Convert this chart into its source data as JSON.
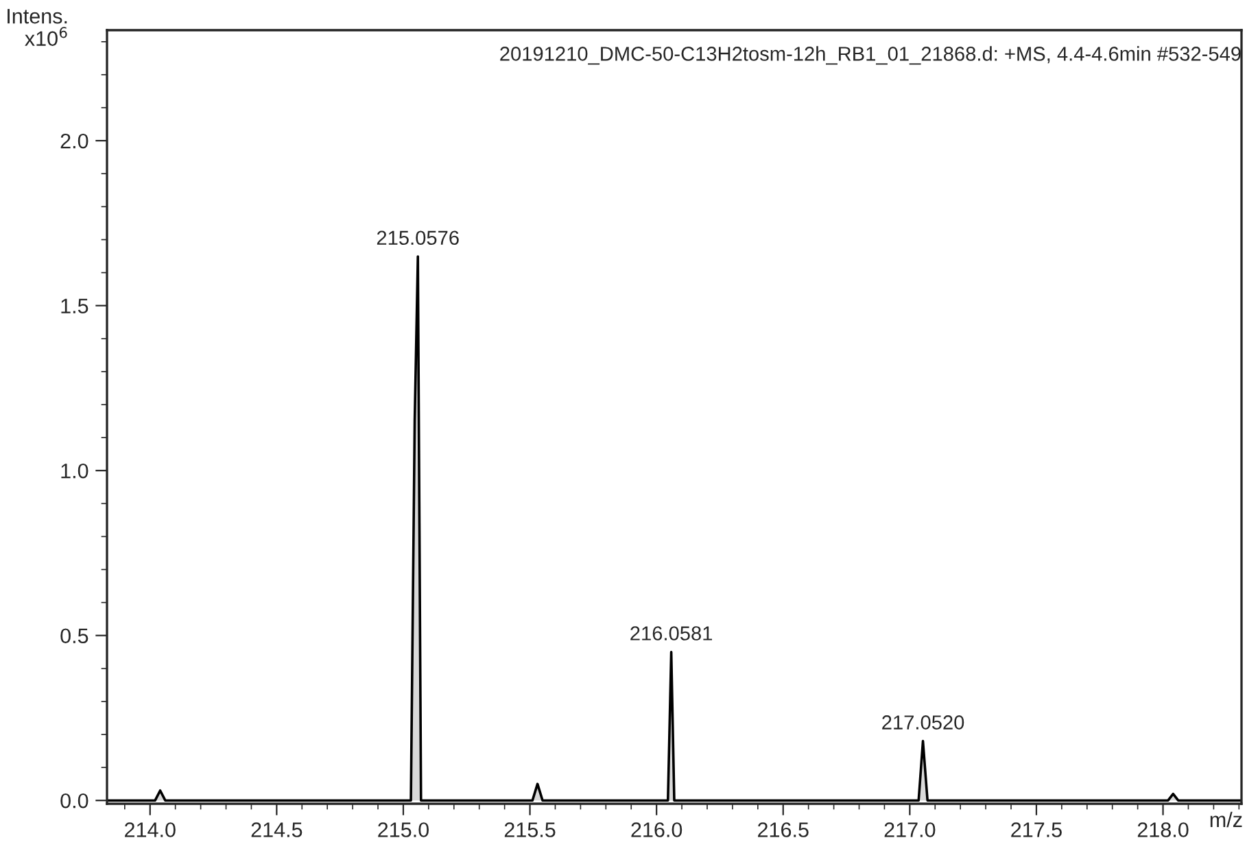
{
  "chart_data": {
    "type": "area",
    "title": "20191210_DMC-50-C13H2tosm-12h_RB1_01_21868.d: +MS, 4.4-4.6min #532-549",
    "ylabel": "Intens.\nx10$^{6}$",
    "xlabel": "m/z",
    "x": [
      213.83,
      214.02,
      214.04,
      214.06,
      215.03,
      215.045,
      215.0576,
      215.07,
      215.51,
      215.53,
      215.55,
      216.045,
      216.0581,
      216.07,
      217.035,
      217.052,
      217.07,
      218.02,
      218.04,
      218.06,
      218.31
    ],
    "series": [
      {
        "color": "#000000",
        "values": [
          0,
          0,
          0.03,
          0,
          0,
          1.15,
          1.649,
          0,
          0,
          0.05,
          0,
          0,
          0.45,
          0,
          0,
          0.18,
          0,
          0,
          0.02,
          0,
          0
        ]
      }
    ],
    "annotations": [
      {
        "text": "215.0576",
        "x": 215.0576,
        "y": 1.649
      },
      {
        "text": "216.0581",
        "x": 216.0581,
        "y": 0.45
      },
      {
        "text": "217.0520",
        "x": 217.052,
        "y": 0.18
      }
    ],
    "xlim": [
      213.83,
      218.31
    ],
    "ylim": [
      -0.01,
      2.335
    ],
    "xticks": [
      {
        "value": 214,
        "label": "214.0"
      },
      214.5,
      {
        "value": 215,
        "label": "215.0"
      },
      215.5,
      {
        "value": 216,
        "label": "216.0"
      },
      216.5,
      {
        "value": 217,
        "label": "217.0"
      },
      217.5,
      {
        "value": 218,
        "label": "218.0"
      }
    ],
    "yticks": [
      {
        "value": 0,
        "label": "0.0"
      },
      0.5,
      {
        "value": 1,
        "label": "1.0"
      },
      1.5,
      {
        "value": 2,
        "label": "2.0"
      }
    ],
    "grid": false,
    "legend": false
  }
}
